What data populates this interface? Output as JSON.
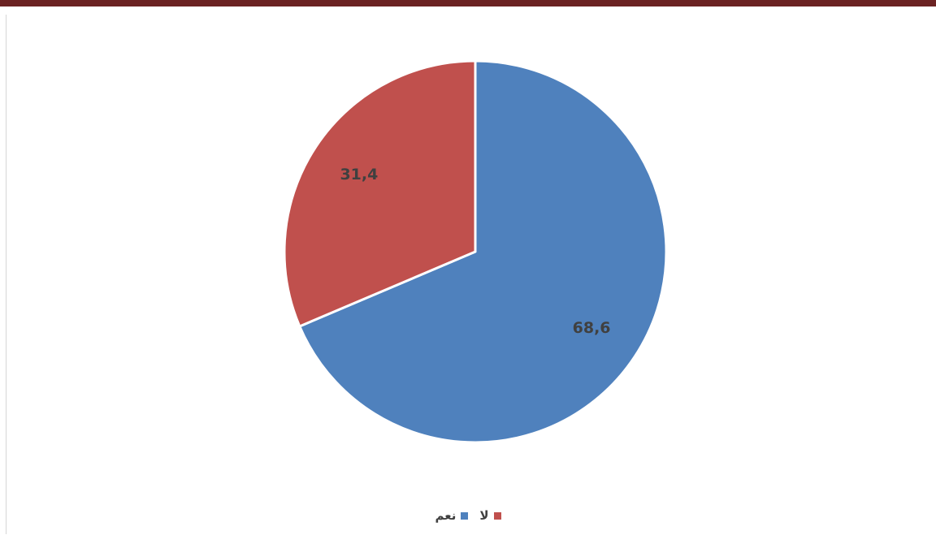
{
  "chart_data": {
    "type": "pie",
    "title": "",
    "legend_position": "bottom",
    "slices": [
      {
        "label": "نعم",
        "value": 68.6,
        "display_value": "68,6",
        "color": "#4f81bd"
      },
      {
        "label": "لا",
        "value": 31.4,
        "display_value": "31,4",
        "color": "#c0504d"
      }
    ]
  }
}
